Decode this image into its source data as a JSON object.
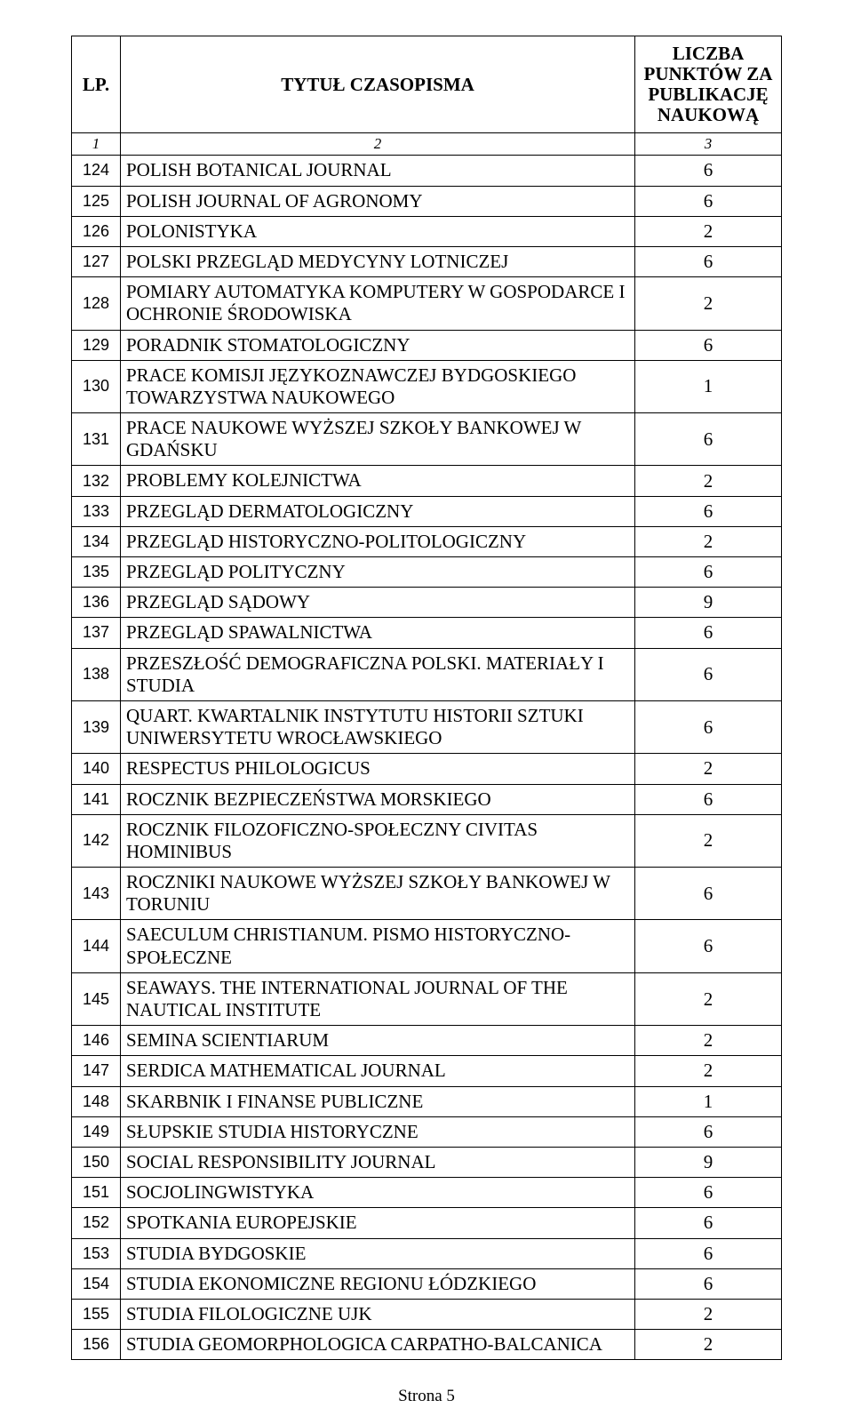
{
  "header": {
    "lp": "LP.",
    "title": "TYTUŁ CZASOPISMA",
    "points": "LICZBA PUNKTÓW ZA PUBLIKACJĘ NAUKOWĄ"
  },
  "subheader": {
    "c1": "1",
    "c2": "2",
    "c3": "3"
  },
  "rows": [
    {
      "lp": "124",
      "title": "POLISH BOTANICAL JOURNAL",
      "points": "6"
    },
    {
      "lp": "125",
      "title": "POLISH JOURNAL OF AGRONOMY",
      "points": "6"
    },
    {
      "lp": "126",
      "title": "POLONISTYKA",
      "points": "2"
    },
    {
      "lp": "127",
      "title": "POLSKI PRZEGLĄD MEDYCYNY LOTNICZEJ",
      "points": "6"
    },
    {
      "lp": "128",
      "title": "POMIARY AUTOMATYKA KOMPUTERY W GOSPODARCE  I OCHRONIE ŚRODOWISKA",
      "points": "2"
    },
    {
      "lp": "129",
      "title": "PORADNIK STOMATOLOGICZNY",
      "points": "6"
    },
    {
      "lp": "130",
      "title": "PRACE KOMISJI JĘZYKOZNAWCZEJ BYDGOSKIEGO TOWARZYSTWA NAUKOWEGO",
      "points": "1"
    },
    {
      "lp": "131",
      "title": "PRACE NAUKOWE WYŻSZEJ SZKOŁY BANKOWEJ W GDAŃSKU",
      "points": "6"
    },
    {
      "lp": "132",
      "title": "PROBLEMY KOLEJNICTWA",
      "points": "2"
    },
    {
      "lp": "133",
      "title": "PRZEGLĄD DERMATOLOGICZNY",
      "points": "6"
    },
    {
      "lp": "134",
      "title": "PRZEGLĄD HISTORYCZNO-POLITOLOGICZNY",
      "points": "2"
    },
    {
      "lp": "135",
      "title": "PRZEGLĄD POLITYCZNY",
      "points": "6"
    },
    {
      "lp": "136",
      "title": "PRZEGLĄD SĄDOWY",
      "points": "9"
    },
    {
      "lp": "137",
      "title": "PRZEGLĄD SPAWALNICTWA",
      "points": "6"
    },
    {
      "lp": "138",
      "title": "PRZESZŁOŚĆ DEMOGRAFICZNA POLSKI. MATERIAŁY I STUDIA",
      "points": "6"
    },
    {
      "lp": "139",
      "title": "QUART. KWARTALNIK INSTYTUTU HISTORII SZTUKI UNIWERSYTETU WROCŁAWSKIEGO",
      "points": "6"
    },
    {
      "lp": "140",
      "title": "RESPECTUS PHILOLOGICUS",
      "points": "2"
    },
    {
      "lp": "141",
      "title": "ROCZNIK BEZPIECZEŃSTWA MORSKIEGO",
      "points": "6"
    },
    {
      "lp": "142",
      "title": "ROCZNIK FILOZOFICZNO-SPOŁECZNY CIVITAS HOMINIBUS",
      "points": "2"
    },
    {
      "lp": "143",
      "title": "ROCZNIKI NAUKOWE WYŻSZEJ SZKOŁY BANKOWEJ W TORUNIU",
      "points": "6"
    },
    {
      "lp": "144",
      "title": "SAECULUM CHRISTIANUM. PISMO HISTORYCZNO-SPOŁECZNE",
      "points": "6"
    },
    {
      "lp": "145",
      "title": "SEAWAYS. THE INTERNATIONAL JOURNAL OF THE NAUTICAL INSTITUTE",
      "points": "2"
    },
    {
      "lp": "146",
      "title": "SEMINA SCIENTIARUM",
      "points": "2"
    },
    {
      "lp": "147",
      "title": "SERDICA MATHEMATICAL JOURNAL",
      "points": "2"
    },
    {
      "lp": "148",
      "title": "SKARBNIK I FINANSE PUBLICZNE",
      "points": "1"
    },
    {
      "lp": "149",
      "title": "SŁUPSKIE STUDIA HISTORYCZNE",
      "points": "6"
    },
    {
      "lp": "150",
      "title": "SOCIAL RESPONSIBILITY JOURNAL",
      "points": "9"
    },
    {
      "lp": "151",
      "title": "SOCJOLINGWISTYKA",
      "points": "6"
    },
    {
      "lp": "152",
      "title": "SPOTKANIA EUROPEJSKIE",
      "points": "6"
    },
    {
      "lp": "153",
      "title": "STUDIA BYDGOSKIE",
      "points": "6"
    },
    {
      "lp": "154",
      "title": "STUDIA EKONOMICZNE REGIONU ŁÓDZKIEGO",
      "points": "6"
    },
    {
      "lp": "155",
      "title": "STUDIA FILOLOGICZNE UJK",
      "points": "2"
    },
    {
      "lp": "156",
      "title": "STUDIA GEOMORPHOLOGICA CARPATHO-BALCANICA",
      "points": "2"
    }
  ],
  "footer": "Strona 5"
}
